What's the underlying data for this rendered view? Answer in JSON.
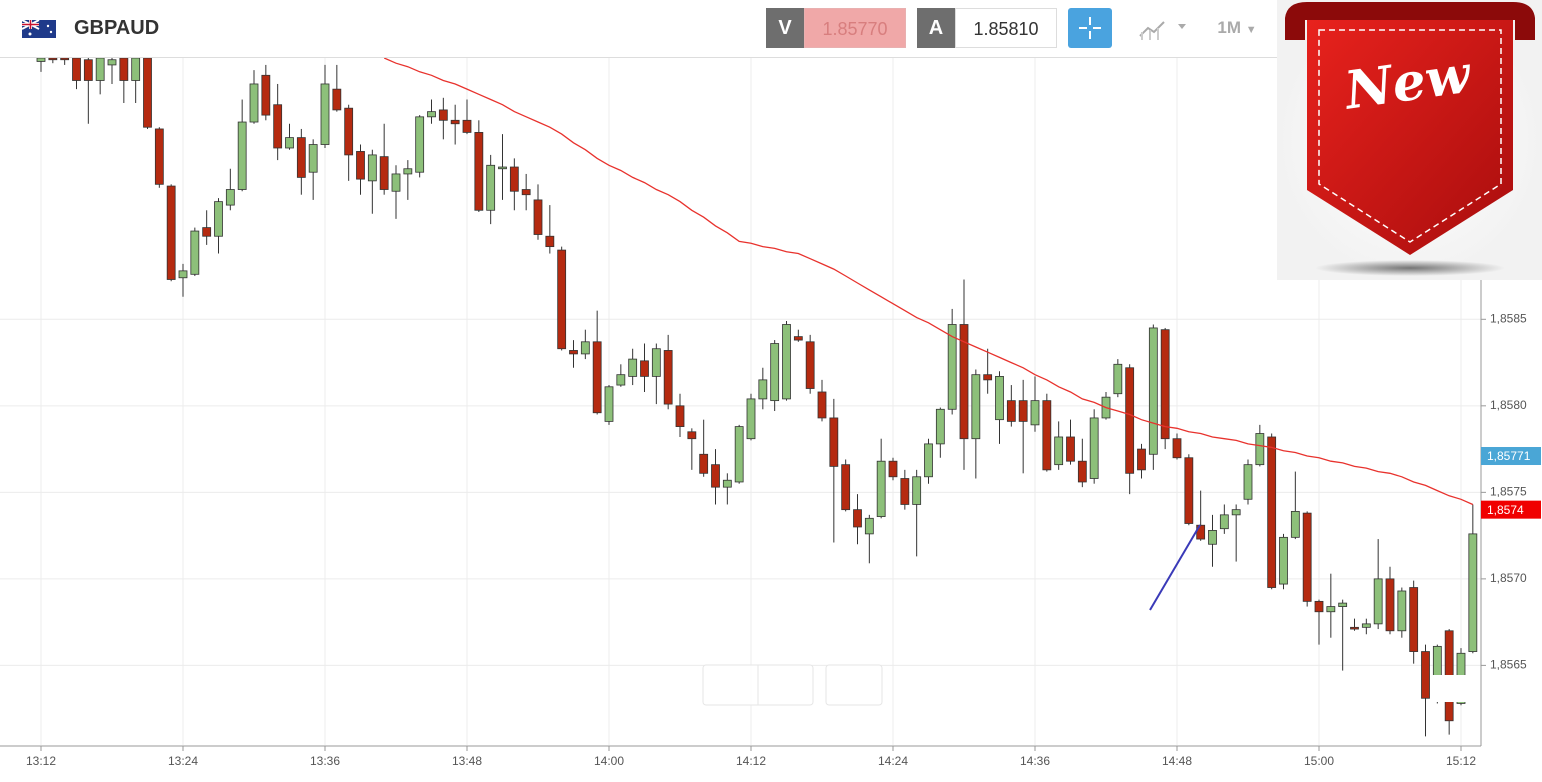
{
  "header": {
    "symbol": "GBPAUD",
    "sell_label": "V",
    "sell_price": "1.85770",
    "buy_label": "A",
    "buy_price": "1.85810",
    "timeframe": "1M",
    "badge": "New"
  },
  "chart_data": {
    "type": "candlestick",
    "categories": [
      "13:12",
      null,
      null,
      null,
      null,
      null,
      null,
      null,
      null,
      null,
      null,
      null,
      "13:24",
      null,
      null,
      null,
      null,
      null,
      null,
      null,
      null,
      null,
      null,
      null,
      "13:36",
      null,
      null,
      null,
      null,
      null,
      null,
      null,
      null,
      null,
      null,
      null,
      "13:48",
      null,
      null,
      null,
      null,
      null,
      null,
      null,
      null,
      null,
      null,
      null,
      "14:00",
      null,
      null,
      null,
      null,
      null,
      null,
      null,
      null,
      null,
      null,
      null,
      "14:12",
      null,
      null,
      null,
      null,
      null,
      null,
      null,
      null,
      null,
      null,
      null,
      "14:24",
      null,
      null,
      null,
      null,
      null,
      null,
      null,
      null,
      null,
      null,
      null,
      "14:36",
      null,
      null,
      null,
      null,
      null,
      null,
      null,
      null,
      null,
      null,
      null,
      "14:48",
      null,
      null,
      null,
      null,
      null,
      null,
      null,
      null,
      null,
      null,
      null,
      "15:00",
      null,
      null,
      null,
      null,
      null,
      null,
      null,
      null,
      null,
      null,
      null,
      "15:12",
      null
    ],
    "open": [
      1.85999,
      1.86001,
      1.86001,
      1.86001,
      1.86,
      1.85988,
      1.85997,
      1.86001,
      1.85988,
      1.86001,
      1.8596,
      1.85927,
      1.85874,
      1.85876,
      1.85903,
      1.85898,
      1.85916,
      1.85925,
      1.85964,
      1.85991,
      1.85974,
      1.85949,
      1.85955,
      1.85935,
      1.85951,
      1.85983,
      1.85972,
      1.85947,
      1.8593,
      1.85944,
      1.85924,
      1.85934,
      1.85935,
      1.85967,
      1.85971,
      1.85965,
      1.85965,
      1.85958,
      1.85913,
      1.85937,
      1.85938,
      1.85925,
      1.85919,
      1.85898,
      1.8589,
      1.85832,
      1.8583,
      1.85837,
      1.85791,
      1.85812,
      1.85817,
      1.85826,
      1.85817,
      1.85832,
      1.858,
      1.85785,
      1.85772,
      1.85766,
      1.85753,
      1.85756,
      1.85781,
      1.85804,
      1.85803,
      1.85804,
      1.8584,
      1.85837,
      1.85808,
      1.85793,
      1.85766,
      1.8574,
      1.85726,
      1.85736,
      1.85768,
      1.85758,
      1.85743,
      1.85759,
      1.85778,
      1.85798,
      1.85847,
      1.85781,
      1.85818,
      1.85792,
      1.85803,
      1.85803,
      1.85789,
      1.85803,
      1.85766,
      1.85782,
      1.85768,
      1.85758,
      1.85793,
      1.85807,
      1.85822,
      1.85775,
      1.85772,
      1.85844,
      1.85781,
      1.8577,
      1.85731,
      1.8572,
      1.85729,
      1.85737,
      1.85746,
      1.85766,
      1.85782,
      1.85697,
      1.85724,
      1.85738,
      1.85687,
      1.85681,
      1.85684,
      1.85672,
      1.85672,
      1.85674,
      1.857,
      1.8567,
      1.85695,
      1.85658,
      1.85631,
      1.8567,
      1.85628,
      1.85658
    ],
    "high": [
      1.86002,
      1.86002,
      1.86002,
      1.86002,
      1.86002,
      1.86002,
      1.86002,
      1.86002,
      1.86002,
      1.86002,
      1.85961,
      1.85928,
      1.85882,
      1.85903,
      1.85913,
      1.8592,
      1.85937,
      1.85977,
      1.85994,
      1.85997,
      1.85986,
      1.85963,
      1.8596,
      1.85954,
      1.85997,
      1.85997,
      1.85974,
      1.85951,
      1.85948,
      1.85963,
      1.85939,
      1.85942,
      1.85968,
      1.85977,
      1.85978,
      1.85974,
      1.85977,
      1.85965,
      1.85945,
      1.85957,
      1.85943,
      1.85934,
      1.85928,
      1.85916,
      1.85892,
      1.85838,
      1.85844,
      1.85855,
      1.85812,
      1.85824,
      1.85833,
      1.85836,
      1.85836,
      1.85841,
      1.85807,
      1.85787,
      1.85792,
      1.85775,
      1.85761,
      1.85789,
      1.85807,
      1.85822,
      1.85838,
      1.85849,
      1.85844,
      1.85841,
      1.85815,
      1.85804,
      1.85769,
      1.85749,
      1.85737,
      1.85781,
      1.8577,
      1.85763,
      1.85763,
      1.85781,
      1.85799,
      1.85856,
      1.85873,
      1.85821,
      1.85833,
      1.8582,
      1.85812,
      1.85815,
      1.85817,
      1.85807,
      1.85791,
      1.85792,
      1.85781,
      1.85798,
      1.85808,
      1.85827,
      1.85824,
      1.85778,
      1.85847,
      1.85845,
      1.85784,
      1.85772,
      1.85751,
      1.85737,
      1.85743,
      1.85743,
      1.85769,
      1.85789,
      1.85784,
      1.85726,
      1.85762,
      1.85739,
      1.85688,
      1.85703,
      1.85688,
      1.85677,
      1.85677,
      1.85723,
      1.85707,
      1.85695,
      1.85699,
      1.85662,
      1.85662,
      1.85671,
      1.8566,
      1.85743
    ],
    "low": [
      1.85993,
      1.85998,
      1.85997,
      1.85983,
      1.85963,
      1.8598,
      1.85986,
      1.85975,
      1.85975,
      1.8596,
      1.85926,
      1.85872,
      1.85863,
      1.85875,
      1.85893,
      1.85888,
      1.85913,
      1.85924,
      1.85963,
      1.85965,
      1.85942,
      1.85948,
      1.85922,
      1.85919,
      1.85949,
      1.8597,
      1.8593,
      1.85922,
      1.85911,
      1.85922,
      1.85908,
      1.85919,
      1.85932,
      1.85963,
      1.85954,
      1.85951,
      1.85957,
      1.85912,
      1.85905,
      1.85919,
      1.85913,
      1.85913,
      1.85896,
      1.85888,
      1.85832,
      1.85822,
      1.85827,
      1.85795,
      1.85789,
      1.85811,
      1.85812,
      1.85808,
      1.85801,
      1.85798,
      1.85782,
      1.85763,
      1.85759,
      1.85743,
      1.85743,
      1.85755,
      1.8578,
      1.85798,
      1.85797,
      1.85803,
      1.85837,
      1.85807,
      1.85791,
      1.85721,
      1.85739,
      1.8572,
      1.85709,
      1.85735,
      1.85757,
      1.8574,
      1.85713,
      1.85755,
      1.8577,
      1.85795,
      1.85763,
      1.85758,
      1.85807,
      1.85778,
      1.85788,
      1.85761,
      1.85785,
      1.85762,
      1.85763,
      1.85766,
      1.85753,
      1.85755,
      1.85792,
      1.85805,
      1.85749,
      1.85758,
      1.85763,
      1.85775,
      1.85769,
      1.85731,
      1.85722,
      1.85707,
      1.85726,
      1.8571,
      1.85743,
      1.85765,
      1.85694,
      1.85694,
      1.85723,
      1.85684,
      1.85662,
      1.85666,
      1.85647,
      1.8567,
      1.85668,
      1.85671,
      1.85668,
      1.85666,
      1.85651,
      1.85609,
      1.85628,
      1.8561,
      1.85627,
      1.85657
    ],
    "close": [
      1.86001,
      1.86,
      1.86,
      1.85988,
      1.85988,
      1.86001,
      1.86,
      1.85988,
      1.86001,
      1.85961,
      1.85928,
      1.85873,
      1.85878,
      1.85901,
      1.85898,
      1.85918,
      1.85925,
      1.85964,
      1.85986,
      1.85968,
      1.85949,
      1.85955,
      1.85932,
      1.85951,
      1.85986,
      1.85971,
      1.85945,
      1.85931,
      1.85945,
      1.85925,
      1.85934,
      1.85937,
      1.85967,
      1.8597,
      1.85965,
      1.85963,
      1.85958,
      1.85913,
      1.85939,
      1.85938,
      1.85924,
      1.85922,
      1.85899,
      1.85892,
      1.85833,
      1.8583,
      1.85837,
      1.85796,
      1.85811,
      1.85818,
      1.85827,
      1.85817,
      1.85833,
      1.85801,
      1.85788,
      1.85781,
      1.85761,
      1.85753,
      1.85757,
      1.85788,
      1.85804,
      1.85815,
      1.85836,
      1.85847,
      1.85838,
      1.8581,
      1.85793,
      1.85765,
      1.8574,
      1.8573,
      1.85735,
      1.85768,
      1.85759,
      1.85743,
      1.85759,
      1.85778,
      1.85798,
      1.85847,
      1.85781,
      1.85818,
      1.85815,
      1.85817,
      1.85791,
      1.85791,
      1.85803,
      1.85763,
      1.85782,
      1.85768,
      1.85756,
      1.85793,
      1.85805,
      1.85824,
      1.85761,
      1.85763,
      1.85845,
      1.85781,
      1.8577,
      1.85732,
      1.85723,
      1.85728,
      1.85737,
      1.8574,
      1.85766,
      1.85784,
      1.85695,
      1.85724,
      1.85739,
      1.85687,
      1.85681,
      1.85684,
      1.85686,
      1.85671,
      1.85674,
      1.857,
      1.8567,
      1.85693,
      1.85658,
      1.85631,
      1.85661,
      1.85618,
      1.85657,
      1.85726
    ],
    "up_color": "#8dc07a",
    "down_color": "#b52a10",
    "ma": {
      "color": "#e8322d",
      "values": [
        null,
        null,
        null,
        null,
        null,
        null,
        null,
        null,
        null,
        null,
        null,
        null,
        null,
        null,
        null,
        null,
        null,
        null,
        null,
        null,
        null,
        null,
        null,
        null,
        null,
        null,
        null,
        null,
        null,
        1.86001,
        1.85998,
        1.85996,
        1.85993,
        1.85991,
        1.85988,
        1.85986,
        1.85983,
        1.8598,
        1.85977,
        1.85974,
        1.8597,
        1.85967,
        1.85964,
        1.85961,
        1.85957,
        1.85952,
        1.85948,
        1.85943,
        1.85939,
        1.85936,
        1.85932,
        1.85929,
        1.85925,
        1.85922,
        1.85918,
        1.85913,
        1.85909,
        1.85904,
        1.859,
        1.85895,
        1.85894,
        1.85892,
        1.85891,
        1.85889,
        1.85888,
        1.85885,
        1.85882,
        1.85879,
        1.85875,
        1.85871,
        1.85867,
        1.85863,
        1.85859,
        1.85855,
        1.85851,
        1.85848,
        1.85844,
        1.8584,
        1.85837,
        1.85834,
        1.85831,
        1.85828,
        1.85825,
        1.85822,
        1.85818,
        1.85815,
        1.85811,
        1.85808,
        1.85804,
        1.85802,
        1.85799,
        1.85797,
        1.85795,
        1.85792,
        1.8579,
        1.85788,
        1.85787,
        1.85785,
        1.85784,
        1.85782,
        1.85781,
        1.8578,
        1.85778,
        1.85777,
        1.85776,
        1.85774,
        1.85773,
        1.85771,
        1.8577,
        1.85768,
        1.85767,
        1.85765,
        1.85764,
        1.85762,
        1.85761,
        1.85759,
        1.85756,
        1.85754,
        1.85751,
        1.85748,
        1.85746,
        1.85743
      ]
    },
    "ylim": [
      1.85604,
      1.86001
    ],
    "yticks": [
      {
        "value": 1.8565,
        "label": "1,8565"
      },
      {
        "value": 1.857,
        "label": "1,8570"
      },
      {
        "value": 1.8575,
        "label": "1,8575"
      },
      {
        "value": 1.858,
        "label": "1,8580"
      },
      {
        "value": 1.8585,
        "label": "1,8585"
      }
    ],
    "grid": true,
    "markers": [
      {
        "value": 1.85771,
        "label": "1,85771",
        "color": "#4aa6d6"
      },
      {
        "value": 1.8574,
        "label": "1,8574",
        "color": "#f00000"
      }
    ]
  }
}
